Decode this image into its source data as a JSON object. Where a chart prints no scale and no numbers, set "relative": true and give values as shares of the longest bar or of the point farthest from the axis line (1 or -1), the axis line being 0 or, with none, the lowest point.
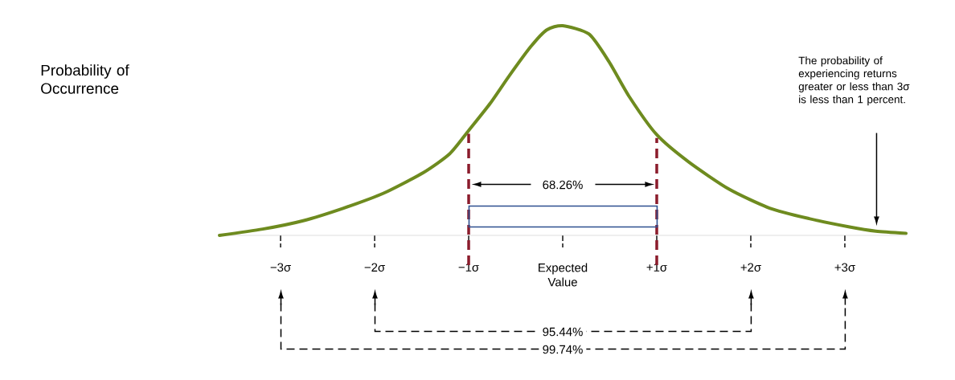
{
  "chart_data": {
    "type": "line",
    "relative": true,
    "color": "#6e8b1f",
    "x": [
      -3.65,
      -3.19,
      -2.76,
      -2.33,
      -1.91,
      -1.48,
      -1.2,
      -1.0,
      -0.77,
      -0.57,
      -0.34,
      -0.17,
      0,
      0.28,
      0.49,
      0.71,
      1.0,
      1.34,
      1.77,
      2.2,
      2.62,
      3.05,
      3.33,
      3.65
    ],
    "values": [
      0,
      0.03,
      0.07,
      0.13,
      0.2,
      0.3,
      0.39,
      0.5,
      0.63,
      0.76,
      0.9,
      0.98,
      1,
      0.96,
      0.83,
      0.66,
      0.48,
      0.35,
      0.22,
      0.13,
      0.08,
      0.04,
      0.02,
      0.01
    ],
    "xlim": [
      -3.65,
      3.65
    ],
    "xticks": [
      {
        "value": -3,
        "label": "−3σ"
      },
      {
        "value": -2,
        "label": "−2σ"
      },
      {
        "value": -1,
        "label": "−1σ"
      },
      {
        "value": 0,
        "label": "Expected Value"
      },
      {
        "value": 1,
        "label": "+1σ"
      },
      {
        "value": 2,
        "label": "+2σ"
      },
      {
        "value": 3,
        "label": "+3σ"
      }
    ],
    "tick_labels": "x",
    "ref_lines": [
      {
        "axis": "x",
        "value": -1,
        "color": "#8b1c2c",
        "line_style": "dashed"
      },
      {
        "axis": "x",
        "value": 1,
        "color": "#8b1c2c",
        "line_style": "dashed"
      }
    ],
    "annotations": [
      "Probability of Occurrence",
      "The probability of experiencing returns greater or less than 3σ is less than 1 percent.",
      "68.26%",
      "95.44%",
      "99.74%"
    ]
  }
}
